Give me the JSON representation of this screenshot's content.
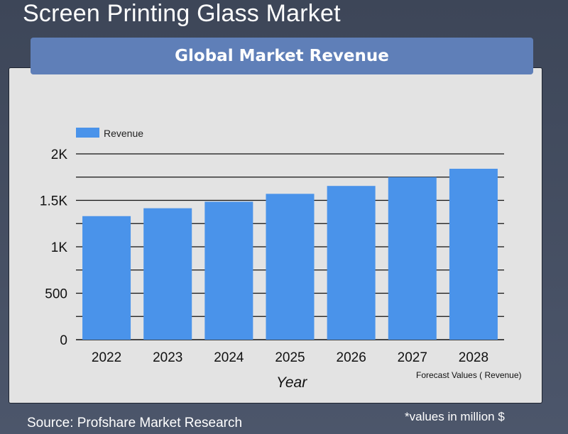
{
  "title": "Screen Printing Glass Market",
  "banner": "Global Market Revenue",
  "source": "Source: Profshare Market Research",
  "note": "*values in million $",
  "forecast_note": "Forecast Values ( Revenue)",
  "colors": {
    "bar": "#4a93ea",
    "banner": "#5f7fb8"
  },
  "chart_data": {
    "type": "bar",
    "categories": [
      "2022",
      "2023",
      "2024",
      "2025",
      "2026",
      "2027",
      "2028"
    ],
    "series": [
      {
        "name": "Revenue",
        "values": [
          1330,
          1415,
          1485,
          1570,
          1655,
          1750,
          1840
        ]
      }
    ],
    "xlabel": "Year",
    "ylabel": "",
    "ylim": [
      0,
      2000
    ],
    "yticks": [
      0,
      500,
      1000,
      1500,
      2000
    ],
    "ytick_labels": [
      "0",
      "500",
      "1K",
      "1.5K",
      "2K"
    ],
    "grid": true,
    "legend": "top-left"
  }
}
